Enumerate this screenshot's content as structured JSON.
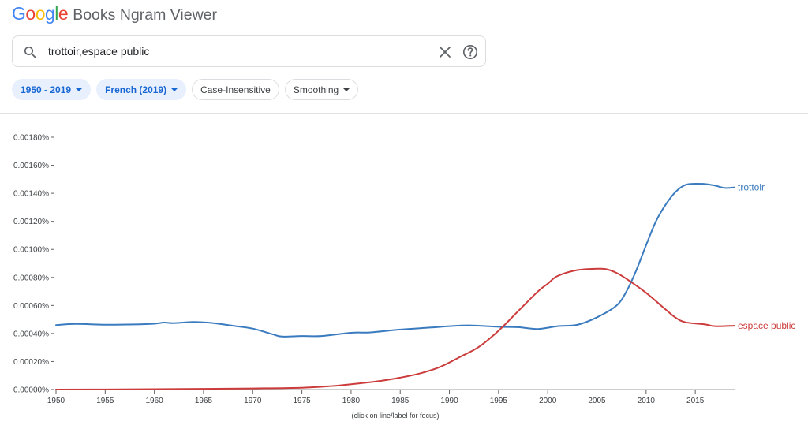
{
  "header": {
    "logo_letters": [
      {
        "ch": "G",
        "color": "#4285f4"
      },
      {
        "ch": "o",
        "color": "#ea4335"
      },
      {
        "ch": "o",
        "color": "#fbbc05"
      },
      {
        "ch": "g",
        "color": "#4285f4"
      },
      {
        "ch": "l",
        "color": "#34a853"
      },
      {
        "ch": "e",
        "color": "#ea4335"
      }
    ],
    "title": "Books Ngram Viewer"
  },
  "search": {
    "value": "trottoir,espace public",
    "icons": {
      "search": "search-icon",
      "clear": "close-icon",
      "help": "help-icon"
    }
  },
  "filters": [
    {
      "label": "1950 - 2019",
      "active": true,
      "dropdown": true
    },
    {
      "label": "French (2019)",
      "active": true,
      "dropdown": true
    },
    {
      "label": "Case-Insensitive",
      "active": false,
      "dropdown": false
    },
    {
      "label": "Smoothing",
      "active": false,
      "dropdown": true
    }
  ],
  "chart_data": {
    "type": "line",
    "xlim": [
      1950,
      2019
    ],
    "ylim": [
      0,
      0.0018
    ],
    "x_ticks": [
      1950,
      1955,
      1960,
      1965,
      1970,
      1975,
      1980,
      1985,
      1990,
      1995,
      2000,
      2005,
      2010,
      2015
    ],
    "y_ticks": [
      0,
      0.0002,
      0.0004,
      0.0006,
      0.0008,
      0.001,
      0.0012,
      0.0014,
      0.0016,
      0.0018
    ],
    "y_tick_labels": [
      "0.00000%",
      "0.00020%",
      "0.00040%",
      "0.00060%",
      "0.00080%",
      "0.00100%",
      "0.00120%",
      "0.00140%",
      "0.00160%",
      "0.00180%"
    ],
    "grid": false,
    "series": [
      {
        "name": "trottoir",
        "color": "#3a7bbf",
        "points": [
          [
            1950,
            0.00046
          ],
          [
            1952,
            0.000468
          ],
          [
            1955,
            0.000463
          ],
          [
            1958,
            0.000465
          ],
          [
            1960,
            0.00047
          ],
          [
            1961,
            0.000478
          ],
          [
            1962,
            0.000474
          ],
          [
            1964,
            0.000482
          ],
          [
            1966,
            0.000474
          ],
          [
            1968,
            0.000455
          ],
          [
            1970,
            0.000435
          ],
          [
            1972,
            0.000395
          ],
          [
            1973,
            0.000378
          ],
          [
            1975,
            0.000382
          ],
          [
            1977,
            0.000382
          ],
          [
            1980,
            0.000405
          ],
          [
            1982,
            0.000408
          ],
          [
            1985,
            0.000428
          ],
          [
            1988,
            0.000442
          ],
          [
            1990,
            0.000452
          ],
          [
            1992,
            0.000458
          ],
          [
            1995,
            0.000448
          ],
          [
            1997,
            0.000445
          ],
          [
            1999,
            0.000432
          ],
          [
            2001,
            0.000452
          ],
          [
            2003,
            0.000462
          ],
          [
            2005,
            0.000515
          ],
          [
            2007,
            0.0006
          ],
          [
            2008,
            0.0007
          ],
          [
            2009,
            0.00085
          ],
          [
            2010,
            0.00103
          ],
          [
            2011,
            0.0012
          ],
          [
            2012,
            0.00132
          ],
          [
            2013,
            0.00141
          ],
          [
            2014,
            0.00146
          ],
          [
            2015,
            0.001468
          ],
          [
            2016,
            0.001466
          ],
          [
            2017,
            0.001455
          ],
          [
            2018,
            0.001438
          ],
          [
            2019,
            0.001442
          ]
        ]
      },
      {
        "name": "espace public",
        "color": "#cc3c3c",
        "points": [
          [
            1950,
            0.0
          ],
          [
            1955,
            1e-06
          ],
          [
            1960,
            3e-06
          ],
          [
            1965,
            5e-06
          ],
          [
            1970,
            8e-06
          ],
          [
            1975,
            1.3e-05
          ],
          [
            1978,
            2.5e-05
          ],
          [
            1980,
            3.8e-05
          ],
          [
            1983,
            6.2e-05
          ],
          [
            1985,
            8.5e-05
          ],
          [
            1987,
            0.000115
          ],
          [
            1989,
            0.00016
          ],
          [
            1991,
            0.00023
          ],
          [
            1993,
            0.000305
          ],
          [
            1995,
            0.00042
          ],
          [
            1997,
            0.00056
          ],
          [
            1999,
            0.0007
          ],
          [
            2000,
            0.000755
          ],
          [
            2001,
            0.00081
          ],
          [
            2003,
            0.000852
          ],
          [
            2005,
            0.000862
          ],
          [
            2006,
            0.000858
          ],
          [
            2007,
            0.000832
          ],
          [
            2008,
            0.00079
          ],
          [
            2010,
            0.00069
          ],
          [
            2012,
            0.00057
          ],
          [
            2013,
            0.000513
          ],
          [
            2014,
            0.00048
          ],
          [
            2016,
            0.000465
          ],
          [
            2017,
            0.000452
          ],
          [
            2019,
            0.000455
          ]
        ]
      }
    ],
    "caption": "(click on line/label for focus)"
  }
}
